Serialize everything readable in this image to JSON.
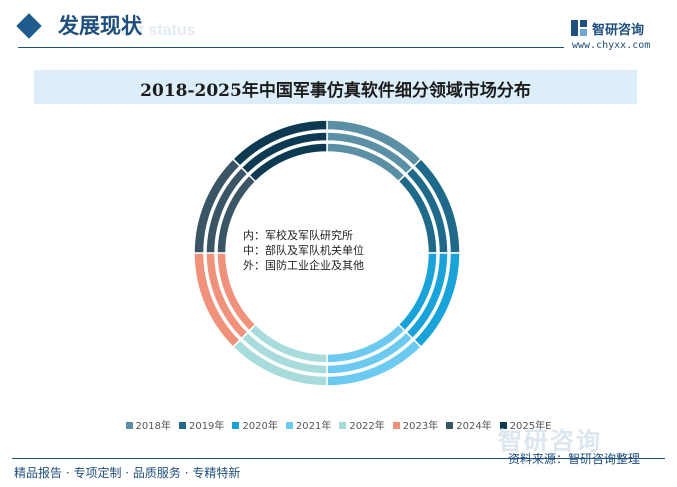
{
  "header": {
    "section_title": "发展现状",
    "section_title_en": "ent status",
    "brand_name": "智研咨询",
    "brand_url": "www.chyxx.com"
  },
  "chart_data": {
    "type": "pie",
    "title": "2018-2025年中国军事仿真软件细分领域市场分布",
    "ring_labels": [
      "内：军校及军队研究所",
      "中：部队及军队机关单位",
      "外：国防工业企业及其他"
    ],
    "rings": [
      "内",
      "中",
      "外"
    ],
    "categories": [
      "2018年",
      "2019年",
      "2020年",
      "2021年",
      "2022年",
      "2023年",
      "2024年",
      "2025年E"
    ],
    "colors": [
      "#5a8fa6",
      "#1f6a8a",
      "#1aa3d9",
      "#6cc9ef",
      "#a8dcdc",
      "#f0927b",
      "#3a5566",
      "#0d3a52"
    ],
    "series": [
      {
        "ring": "内",
        "values": [
          12.5,
          12.5,
          12.5,
          12.5,
          12.5,
          12.5,
          12.5,
          12.5
        ]
      },
      {
        "ring": "中",
        "values": [
          12.5,
          12.5,
          12.5,
          12.5,
          12.5,
          12.5,
          12.5,
          12.5
        ]
      },
      {
        "ring": "外",
        "values": [
          12.5,
          12.5,
          12.5,
          12.5,
          12.5,
          12.5,
          12.5,
          12.5
        ]
      }
    ],
    "legend_position": "bottom"
  },
  "footer": {
    "left": "精品报告 · 专项定制 · 品质服务 · 专精特新",
    "source": "资料来源：智研咨询整理",
    "watermark": "智研咨询"
  }
}
